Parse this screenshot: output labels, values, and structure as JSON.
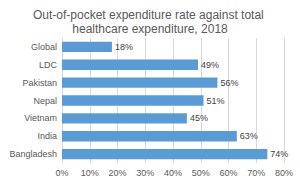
{
  "chart_data": {
    "type": "bar",
    "orientation": "horizontal",
    "title": "Out-of-pocket expenditure rate against total healthcare expenditure, 2018",
    "categories": [
      "Global",
      "LDC",
      "Pakistan",
      "Nepal",
      "Vietnam",
      "India",
      "Bangladesh"
    ],
    "values": [
      18,
      49,
      56,
      51,
      45,
      63,
      74
    ],
    "value_labels": [
      "18%",
      "49%",
      "56%",
      "51%",
      "45%",
      "63%",
      "74%"
    ],
    "color": "#5b9bd5",
    "xlim": [
      0,
      80
    ],
    "xticks": [
      {
        "value": 0,
        "label": "0%"
      },
      {
        "value": 10,
        "label": "10%"
      },
      {
        "value": 20,
        "label": "20%"
      },
      {
        "value": 30,
        "label": "30%"
      },
      {
        "value": 40,
        "label": "40%"
      },
      {
        "value": 50,
        "label": "50%"
      },
      {
        "value": 60,
        "label": "60%"
      },
      {
        "value": 70,
        "label": "70%"
      },
      {
        "value": 80,
        "label": "80%"
      }
    ],
    "grid": true,
    "data_labels": true
  }
}
